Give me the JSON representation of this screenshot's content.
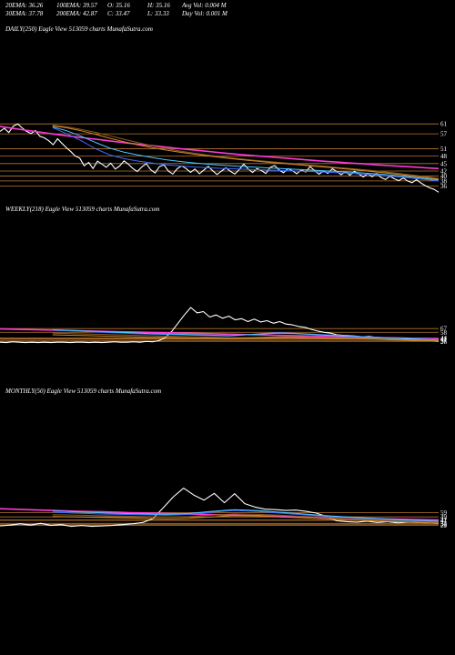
{
  "header": {
    "row1": [
      "20EMA: 36.26",
      "100EMA: 39.57",
      "O: 35.16",
      "H: 35.16",
      "Avg Vol: 0.004 M"
    ],
    "row2": [
      "30EMA: 37.78",
      "200EMA: 42.87",
      "C: 33.47",
      "L: 33.33",
      "Day Vol: 0.001 M"
    ]
  },
  "colors": {
    "background": "#000000",
    "price": "#ffffff",
    "level_line": "#b8762e",
    "ema_pink": "#ff3ad7",
    "ema_blue": "#3d6bff",
    "ema_cyan": "#4cc6ff",
    "ema_brown": "#8a5a1e",
    "ema_orange": "#d08a2a"
  },
  "chart_data": [
    {
      "type": "line",
      "title": "DAILY(250) Eagle  View  513059 charts MunafaSutra.com",
      "price_axis_labels": [
        "61",
        "57",
        "51",
        "48",
        "45",
        "42",
        "40",
        "38",
        "36"
      ],
      "levels": [
        61,
        57,
        51,
        48,
        45,
        42,
        40,
        38,
        36
      ],
      "ylim": [
        31,
        64
      ],
      "series": [
        {
          "key": "price",
          "values": [
            58.0,
            59.2,
            57.5,
            60.1,
            61.0,
            59.4,
            58.0,
            57.1,
            58.3,
            56.0,
            55.4,
            54.2,
            52.6,
            55.0,
            53.1,
            51.4,
            49.8,
            48.0,
            47.2,
            44.1,
            45.5,
            43.0,
            46.0,
            44.8,
            43.5,
            45.2,
            42.8,
            44.0,
            46.1,
            44.7,
            43.0,
            41.8,
            43.6,
            45.0,
            42.6,
            41.2,
            43.8,
            44.5,
            42.0,
            40.8,
            42.9,
            44.1,
            43.0,
            41.5,
            42.8,
            40.9,
            42.4,
            43.9,
            42.1,
            40.6,
            42.0,
            43.3,
            41.9,
            40.8,
            42.6,
            44.8,
            42.9,
            41.4,
            43.0,
            42.2,
            41.0,
            43.5,
            44.2,
            42.4,
            41.3,
            43.0,
            42.1,
            40.9,
            42.5,
            41.6,
            43.8,
            42.2,
            40.7,
            42.0,
            41.1,
            42.9,
            41.8,
            40.5,
            41.7,
            40.3,
            41.9,
            40.8,
            39.6,
            40.9,
            39.7,
            41.0,
            39.4,
            38.6,
            39.9,
            38.9,
            38.1,
            39.2,
            38.0,
            37.3,
            38.5,
            37.2,
            36.1,
            35.2,
            34.6,
            33.47
          ]
        },
        {
          "key": "ema_pink",
          "values": [
            60.0,
            59.2,
            58.5,
            57.8,
            57.1,
            56.4,
            55.8,
            55.2,
            54.6,
            54.0,
            53.4,
            52.8,
            52.3,
            51.8,
            51.2,
            50.7,
            50.2,
            49.7,
            49.2,
            48.7,
            48.3,
            47.9,
            47.5,
            47.1,
            46.7,
            46.3,
            45.9,
            45.6,
            45.2,
            44.9,
            44.5,
            44.2,
            43.9,
            43.6,
            43.3,
            43.0
          ]
        },
        {
          "key": "ema_blue",
          "values": [
            59.5,
            57.0,
            54.2,
            51.0,
            48.5,
            47.0,
            46.0,
            45.2,
            44.5,
            44.0,
            43.6,
            43.3,
            43.0,
            42.8,
            42.6,
            42.4,
            42.2,
            42.0,
            41.8,
            41.6,
            41.3,
            41.0,
            40.6,
            40.2,
            39.7,
            39.2,
            38.6,
            38.0
          ]
        },
        {
          "key": "ema_cyan",
          "values": [
            59.8,
            58.2,
            56.0,
            53.5,
            51.2,
            49.6,
            48.4,
            47.4,
            46.5,
            45.8,
            45.2,
            44.7,
            44.3,
            43.9,
            43.6,
            43.3,
            43.0,
            42.7,
            42.4,
            42.1,
            41.8,
            41.5,
            41.1,
            40.7,
            40.2,
            39.6,
            39.0,
            38.4
          ]
        },
        {
          "key": "ema_brown",
          "values": [
            60.5,
            59.8,
            58.8,
            57.6,
            56.2,
            54.8,
            53.4,
            52.1,
            51.0,
            50.0,
            49.1,
            48.3,
            47.6,
            47.0,
            46.4,
            45.9,
            45.4,
            44.9,
            44.4,
            43.9,
            43.4,
            42.9,
            42.4,
            41.8,
            41.2,
            40.5,
            39.8,
            39.0
          ]
        },
        {
          "key": "ema_orange",
          "values": [
            60.2,
            59.4,
            58.2,
            56.8,
            55.2,
            53.8,
            52.5,
            51.4,
            50.4,
            49.5,
            48.7,
            48.0,
            47.3,
            46.7,
            46.1,
            45.6,
            45.1,
            44.6,
            44.1,
            43.6,
            43.1,
            42.6,
            42.0,
            41.4,
            40.8,
            40.1,
            39.4,
            38.7
          ]
        }
      ]
    },
    {
      "type": "line",
      "title": "WEEKLY(218) Eagle  View  513059 charts MunafaSutra.com",
      "price_axis_labels": [
        "67",
        "58",
        "44",
        "42",
        "41",
        "37",
        "36"
      ],
      "levels": [
        67,
        58,
        44,
        42,
        41,
        37,
        36
      ],
      "ylim": [
        30,
        140
      ],
      "series": [
        {
          "key": "price",
          "values": [
            34,
            33,
            35,
            34,
            33,
            34,
            33,
            34,
            33,
            34,
            34,
            33,
            34,
            34,
            33,
            34,
            33,
            34,
            35,
            34,
            34,
            35,
            34,
            36,
            35,
            38,
            45,
            60,
            80,
            100,
            118,
            105,
            108,
            95,
            100,
            92,
            97,
            88,
            91,
            84,
            90,
            83,
            86,
            80,
            84,
            78,
            76,
            72,
            70,
            65,
            61,
            58,
            56,
            52,
            51,
            50,
            49,
            47,
            48,
            46,
            45,
            44,
            44,
            43,
            42,
            41,
            40,
            39,
            38,
            36
          ]
        },
        {
          "key": "ema_pink",
          "values": [
            66,
            65,
            64,
            63,
            62,
            61,
            60,
            59,
            58,
            57,
            56,
            55,
            54,
            53,
            52,
            51,
            50,
            49,
            48,
            47,
            46,
            45,
            44,
            43,
            42
          ]
        },
        {
          "key": "ema_blue",
          "values": [
            63,
            62,
            60,
            58,
            57,
            55,
            54,
            53,
            52,
            51,
            50,
            49,
            52,
            55,
            57,
            56,
            54,
            52,
            50,
            48,
            46,
            45,
            44,
            42,
            40
          ]
        },
        {
          "key": "ema_cyan",
          "values": [
            64,
            63,
            61,
            60,
            58,
            57,
            55,
            54,
            53,
            52,
            51,
            50,
            52,
            54,
            56,
            55,
            53,
            51,
            49,
            47,
            45,
            44,
            43,
            41,
            39
          ]
        },
        {
          "key": "ema_brown",
          "values": [
            56,
            55,
            54,
            53,
            52,
            51,
            50,
            49,
            48,
            47,
            46,
            45,
            45,
            46,
            47,
            47,
            46,
            45,
            44,
            43,
            42,
            41,
            40,
            39,
            38
          ]
        },
        {
          "key": "ema_orange",
          "values": [
            52,
            51,
            50,
            49,
            48,
            47,
            46,
            46,
            45,
            44,
            44,
            43,
            44,
            45,
            46,
            46,
            45,
            44,
            43,
            42,
            41,
            40,
            39,
            38,
            37
          ]
        }
      ]
    },
    {
      "type": "line",
      "title": "MONTHLY(50) Eagle  View  513059 charts MunafaSutra.com",
      "price_axis_labels": [
        "59",
        "49",
        "42",
        "41",
        "34",
        "32",
        "29"
      ],
      "levels": [
        59,
        49,
        42,
        41,
        34,
        32,
        29
      ],
      "ylim": [
        24,
        130
      ],
      "series": [
        {
          "key": "price",
          "values": [
            28,
            30,
            33,
            30,
            34,
            29,
            31,
            27,
            29,
            27,
            28,
            29,
            31,
            33,
            36,
            45,
            70,
            96,
            116,
            100,
            88,
            104,
            82,
            103,
            80,
            72,
            67,
            66,
            64,
            65,
            62,
            58,
            50,
            40,
            38,
            37,
            39,
            36,
            38,
            35,
            37,
            36,
            35,
            34
          ]
        },
        {
          "key": "ema_pink",
          "values": [
            68,
            66,
            64,
            62,
            61,
            59,
            58,
            56,
            55,
            53,
            52,
            50,
            49,
            47,
            46,
            44,
            43,
            42
          ]
        },
        {
          "key": "ema_blue",
          "values": [
            60,
            58,
            56,
            55,
            54,
            53,
            55,
            60,
            64,
            62,
            58,
            54,
            51,
            48,
            45,
            42,
            40,
            38
          ]
        },
        {
          "key": "ema_cyan",
          "values": [
            63,
            61,
            59,
            57,
            56,
            55,
            57,
            62,
            66,
            64,
            60,
            56,
            52,
            49,
            46,
            43,
            41,
            39
          ]
        },
        {
          "key": "ema_brown",
          "values": [
            54,
            53,
            52,
            51,
            50,
            49,
            50,
            53,
            56,
            55,
            53,
            50,
            48,
            45,
            43,
            40,
            38,
            36
          ]
        },
        {
          "key": "ema_orange",
          "values": [
            50,
            49,
            48,
            47,
            46,
            45,
            46,
            49,
            52,
            51,
            49,
            47,
            45,
            42,
            40,
            38,
            36,
            34
          ]
        }
      ]
    }
  ]
}
